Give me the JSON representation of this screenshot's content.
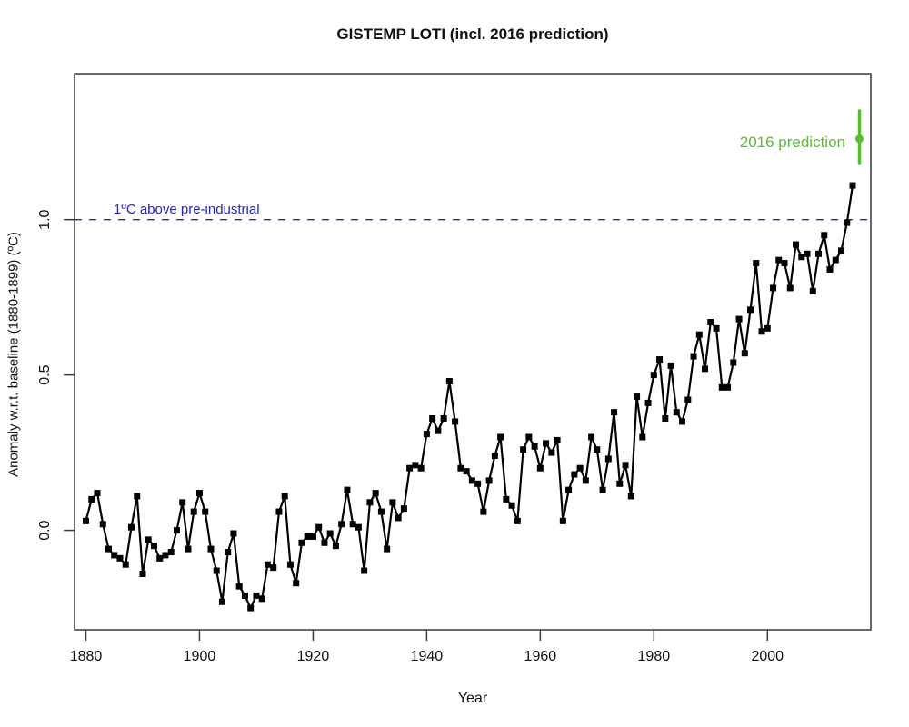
{
  "page_title": "GISTEMP LOTI (incl. 2016 prediction)",
  "chart_data": {
    "type": "line",
    "title": "GISTEMP LOTI (incl. 2016 prediction)",
    "xlabel": "Year",
    "ylabel": "Anomaly w.r.t. baseline (1880-1899) (ºC)",
    "xlim": [
      1878,
      2018.2
    ],
    "ylim": [
      -0.32,
      1.47
    ],
    "xticks": [
      1880,
      1900,
      1920,
      1940,
      1960,
      1980,
      2000
    ],
    "yticks": [
      0.0,
      0.5,
      1.0
    ],
    "ytick_labels": [
      "0.0",
      "0.5",
      "1.0"
    ],
    "grid": false,
    "legend": "none",
    "marker": "filled-square",
    "line_color": "#000000",
    "series": [
      {
        "name": "GISTEMP LOTI annual anomaly",
        "color": "#000000",
        "x": [
          1880,
          1881,
          1882,
          1883,
          1884,
          1885,
          1886,
          1887,
          1888,
          1889,
          1890,
          1891,
          1892,
          1893,
          1894,
          1895,
          1896,
          1897,
          1898,
          1899,
          1900,
          1901,
          1902,
          1903,
          1904,
          1905,
          1906,
          1907,
          1908,
          1909,
          1910,
          1911,
          1912,
          1913,
          1914,
          1915,
          1916,
          1917,
          1918,
          1919,
          1920,
          1921,
          1922,
          1923,
          1924,
          1925,
          1926,
          1927,
          1928,
          1929,
          1930,
          1931,
          1932,
          1933,
          1934,
          1935,
          1936,
          1937,
          1938,
          1939,
          1940,
          1941,
          1942,
          1943,
          1944,
          1945,
          1946,
          1947,
          1948,
          1949,
          1950,
          1951,
          1952,
          1953,
          1954,
          1955,
          1956,
          1957,
          1958,
          1959,
          1960,
          1961,
          1962,
          1963,
          1964,
          1965,
          1966,
          1967,
          1968,
          1969,
          1970,
          1971,
          1972,
          1973,
          1974,
          1975,
          1976,
          1977,
          1978,
          1979,
          1980,
          1981,
          1982,
          1983,
          1984,
          1985,
          1986,
          1987,
          1988,
          1989,
          1990,
          1991,
          1992,
          1993,
          1994,
          1995,
          1996,
          1997,
          1998,
          1999,
          2000,
          2001,
          2002,
          2003,
          2004,
          2005,
          2006,
          2007,
          2008,
          2009,
          2010,
          2011,
          2012,
          2013,
          2014,
          2015
        ],
        "y": [
          0.03,
          0.1,
          0.12,
          0.02,
          -0.06,
          -0.08,
          -0.09,
          -0.11,
          0.01,
          0.11,
          -0.14,
          -0.03,
          -0.05,
          -0.09,
          -0.08,
          -0.07,
          0.0,
          0.09,
          -0.06,
          0.06,
          0.12,
          0.06,
          -0.06,
          -0.13,
          -0.23,
          -0.07,
          -0.01,
          -0.18,
          -0.21,
          -0.25,
          -0.21,
          -0.22,
          -0.11,
          -0.12,
          0.06,
          0.11,
          -0.11,
          -0.17,
          -0.04,
          -0.02,
          -0.02,
          0.01,
          -0.04,
          -0.01,
          -0.05,
          0.02,
          0.13,
          0.02,
          0.01,
          -0.13,
          0.09,
          0.12,
          0.06,
          -0.06,
          0.09,
          0.04,
          0.07,
          0.2,
          0.21,
          0.2,
          0.31,
          0.36,
          0.32,
          0.36,
          0.48,
          0.35,
          0.2,
          0.19,
          0.16,
          0.15,
          0.06,
          0.16,
          0.24,
          0.3,
          0.1,
          0.08,
          0.03,
          0.26,
          0.3,
          0.27,
          0.2,
          0.28,
          0.25,
          0.29,
          0.03,
          0.13,
          0.18,
          0.2,
          0.16,
          0.3,
          0.26,
          0.13,
          0.23,
          0.38,
          0.15,
          0.21,
          0.11,
          0.43,
          0.3,
          0.41,
          0.5,
          0.55,
          0.36,
          0.53,
          0.38,
          0.35,
          0.42,
          0.56,
          0.63,
          0.52,
          0.67,
          0.65,
          0.46,
          0.46,
          0.54,
          0.68,
          0.57,
          0.71,
          0.86,
          0.64,
          0.65,
          0.78,
          0.87,
          0.86,
          0.78,
          0.92,
          0.88,
          0.89,
          0.77,
          0.89,
          0.95,
          0.84,
          0.87,
          0.9,
          0.99,
          1.11
        ]
      }
    ],
    "reference_line": {
      "y": 1.0,
      "label": "1ºC above pre-industrial",
      "color": "#2222dd",
      "style": "dashed"
    },
    "prediction": {
      "label": "2016 prediction",
      "x": 2016.2,
      "y": 1.26,
      "ci_low": 1.18,
      "ci_high": 1.35,
      "color": "#55be2d"
    }
  }
}
